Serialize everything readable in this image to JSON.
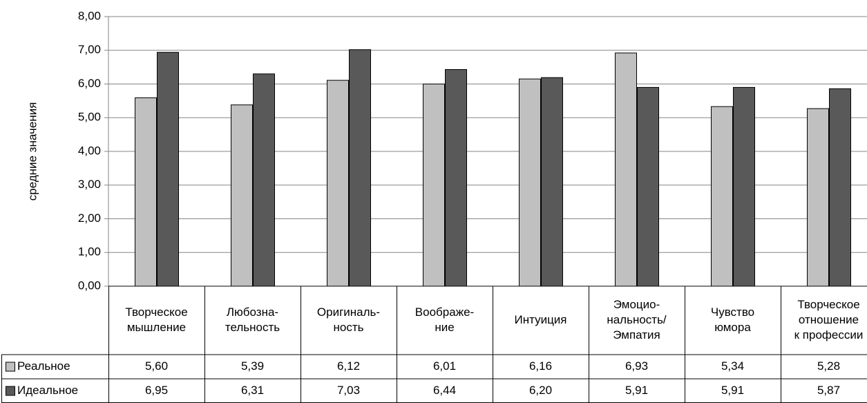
{
  "chart_data": {
    "type": "bar",
    "title": "",
    "xlabel": "",
    "ylabel": "средние значения",
    "ylim": [
      0,
      8
    ],
    "yticks": [
      "0,00",
      "1,00",
      "2,00",
      "3,00",
      "4,00",
      "5,00",
      "6,00",
      "7,00",
      "8,00"
    ],
    "grid": true,
    "legend": "data-table-left",
    "categories": [
      [
        "Творческое",
        "мышление"
      ],
      [
        "Любозна-",
        "тельность"
      ],
      [
        "Оригиналь-",
        "ность"
      ],
      [
        "Воображе-",
        "ние"
      ],
      [
        "Интуиция"
      ],
      [
        "Эмоцио-",
        "нальность/",
        "Эмпатия"
      ],
      [
        "Чувство",
        "юмора"
      ],
      [
        "Творческое",
        "отношение",
        "к профессии"
      ]
    ],
    "series": [
      {
        "name": "Реальное",
        "color": "#c0c0c0",
        "values": [
          5.6,
          5.39,
          6.12,
          6.01,
          6.16,
          6.93,
          5.34,
          5.28
        ],
        "labels": [
          "5,60",
          "5,39",
          "6,12",
          "6,01",
          "6,16",
          "6,93",
          "5,34",
          "5,28"
        ]
      },
      {
        "name": "Идеальное",
        "color": "#595959",
        "values": [
          6.95,
          6.31,
          7.03,
          6.44,
          6.2,
          5.91,
          5.91,
          5.87
        ],
        "labels": [
          "6,95",
          "6,31",
          "7,03",
          "6,44",
          "6,20",
          "5,91",
          "5,91",
          "5,87"
        ]
      }
    ]
  }
}
